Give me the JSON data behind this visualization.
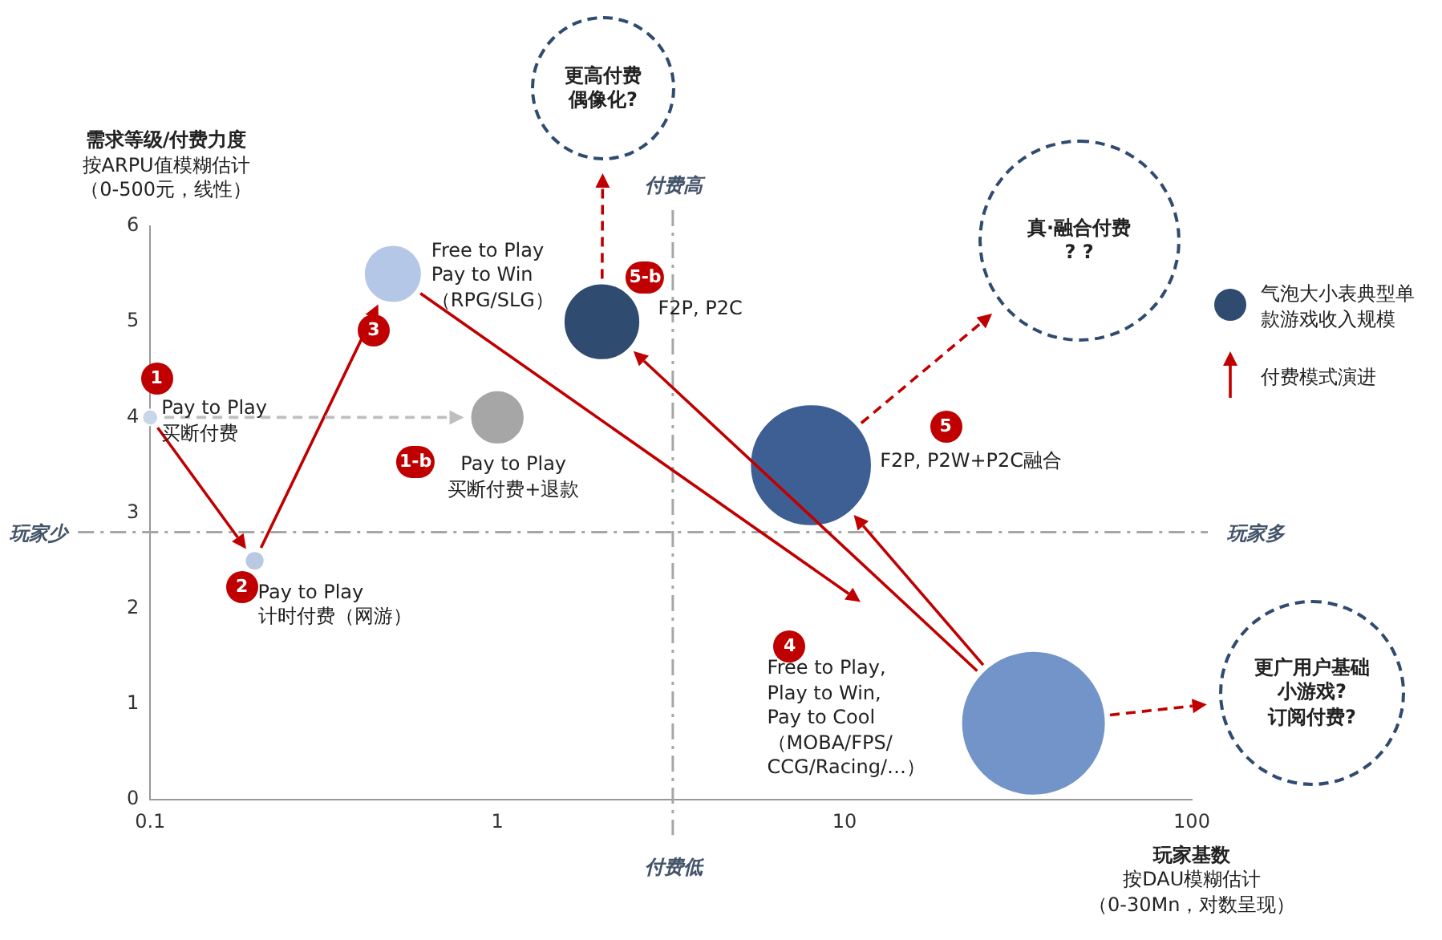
{
  "chart_data": {
    "type": "bubble",
    "x": [
      0.1,
      0.2,
      0.5,
      1,
      2,
      8,
      35
    ],
    "values": [
      4,
      2.5,
      5.5,
      4,
      5,
      3.5,
      0.8
    ],
    "sizes": [
      0.012,
      0.018,
      0.16,
      0.14,
      0.28,
      0.71,
      1
    ],
    "colors": [
      "#c9d6ea",
      "#b9c9e2",
      "#b4c7e7",
      "#a6a6a6",
      "#2f4b70",
      "#3e5f94",
      "#7394c8"
    ],
    "xlim": [
      0.1,
      100
    ],
    "ylim": [
      0,
      6
    ],
    "xticks": [
      0.1,
      1,
      10,
      100
    ],
    "yticks": [
      0,
      1,
      2,
      3,
      4,
      5,
      6
    ],
    "log": "x",
    "grid": false,
    "xlabel": "玩家基数按DAU模糊估计（0-30Mn，对数呈现）",
    "ylabel": "需求等级/付费力度按ARPU值模糊估计（0-500元，线性）",
    "ref_lines": [
      {
        "axis": "x",
        "value": 3.2,
        "color": "#a6a6a6",
        "line_style": "dashed"
      },
      {
        "axis": "y",
        "value": 2.8,
        "color": "#a6a6a6",
        "line_style": "dashed"
      }
    ],
    "annotations": [
      {
        "text": "Pay to Play\n买断付费",
        "x": 0.1,
        "y": 4
      },
      {
        "text": "Pay to Play\n计时付费（网游）",
        "x": 0.2,
        "y": 2.5
      },
      {
        "text": "Free to Play\nPay to Win\n（RPG/SLG）",
        "x": 0.5,
        "y": 5.5
      },
      {
        "text": "Pay to Play\n买断付费+退款",
        "x": 1,
        "y": 4
      },
      {
        "text": "F2P, P2C",
        "x": 2,
        "y": 5
      },
      "F2P, P2W+P2C融合",
      "Free to Play,\nPlay to Win,\nPay to Cool\n（MOBA/FPS/\nCCG/Racing/…）",
      {
        "text": "1",
        "x": 0.1,
        "y": 4
      },
      "1-b",
      {
        "text": "2",
        "x": 0.2,
        "y": 2.5
      },
      {
        "text": "3",
        "x": 0.5,
        "y": 5.5
      },
      "4",
      "5",
      {
        "text": "5-b",
        "x": 2,
        "y": 5
      },
      "更高付费偶像化?",
      "真·融合付费? ?",
      "更广用户基础小游戏?订阅付费?",
      "气泡大小表典型单款游戏收入规模",
      "付费模式演进",
      "付费高",
      "付费低",
      "玩家少",
      "玩家多"
    ]
  }
}
